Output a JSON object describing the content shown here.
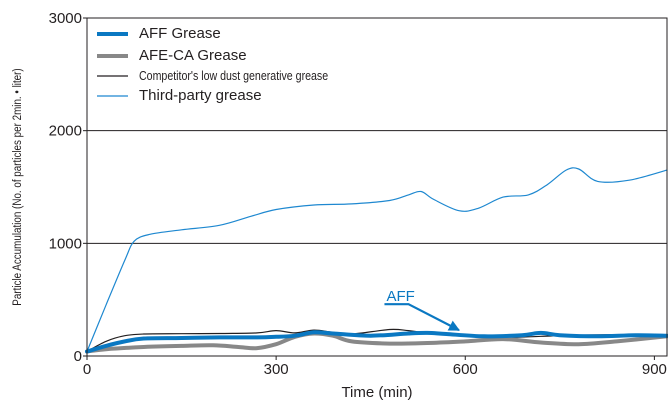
{
  "chart_data": {
    "type": "line",
    "title": "",
    "xlabel": "Time (min)",
    "ylabel": "Particle Accumulation (No. of particles per 2min. • liter)",
    "xlim": [
      0,
      920
    ],
    "ylim": [
      0,
      3000
    ],
    "xticks": [
      0,
      300,
      600,
      900
    ],
    "xtick_labels": [
      "0",
      "300",
      "600",
      "900"
    ],
    "yticks": [
      0,
      1000,
      2000,
      3000
    ],
    "ytick_labels": [
      "0",
      "1000",
      "2000",
      "3000"
    ],
    "grid": "horizontal",
    "legend": "top-left",
    "series": [
      {
        "name": "AFF Grease",
        "color": "#0a78c2",
        "x": [
          0,
          30,
          60,
          90,
          150,
          210,
          270,
          300,
          330,
          360,
          390,
          450,
          510,
          540,
          570,
          630,
          690,
          720,
          750,
          810,
          870,
          920
        ],
        "y": [
          40,
          90,
          130,
          155,
          160,
          165,
          165,
          170,
          180,
          210,
          200,
          180,
          200,
          205,
          195,
          175,
          185,
          205,
          185,
          175,
          185,
          180
        ]
      },
      {
        "name": "AFE-CA Grease",
        "color": "#888888",
        "x": [
          0,
          30,
          90,
          150,
          200,
          240,
          270,
          300,
          330,
          360,
          390,
          420,
          480,
          540,
          600,
          660,
          720,
          780,
          840,
          920
        ],
        "y": [
          40,
          60,
          80,
          90,
          95,
          80,
          70,
          105,
          170,
          200,
          180,
          130,
          110,
          115,
          130,
          150,
          120,
          105,
          130,
          175
        ]
      },
      {
        "name": "Competitor's low dust generative grease",
        "color": "#231f20",
        "x": [
          0,
          30,
          60,
          90,
          150,
          210,
          270,
          300,
          330,
          360,
          390,
          420,
          480,
          510,
          540,
          600,
          660,
          720,
          780,
          840,
          920
        ],
        "y": [
          40,
          130,
          180,
          195,
          198,
          200,
          205,
          225,
          205,
          230,
          210,
          195,
          235,
          225,
          205,
          190,
          165,
          175,
          185,
          190,
          190
        ]
      },
      {
        "name": "Third-party grease",
        "color": "#1e88d0",
        "x": [
          0,
          30,
          60,
          75,
          100,
          150,
          210,
          260,
          300,
          360,
          420,
          480,
          510,
          530,
          550,
          590,
          620,
          660,
          700,
          730,
          760,
          780,
          810,
          860,
          920
        ],
        "y": [
          40,
          450,
          850,
          1020,
          1080,
          1120,
          1160,
          1240,
          1300,
          1340,
          1350,
          1380,
          1430,
          1460,
          1390,
          1290,
          1310,
          1410,
          1430,
          1520,
          1650,
          1660,
          1550,
          1560,
          1650
        ]
      }
    ],
    "annotations": [
      {
        "text": "AFF",
        "color": "#0a78c2",
        "label_x": 475,
        "label_y": 490,
        "arrow_from_x": 510,
        "arrow_from_y": 460,
        "arrow_to_x": 590,
        "arrow_to_y": 230
      }
    ]
  }
}
